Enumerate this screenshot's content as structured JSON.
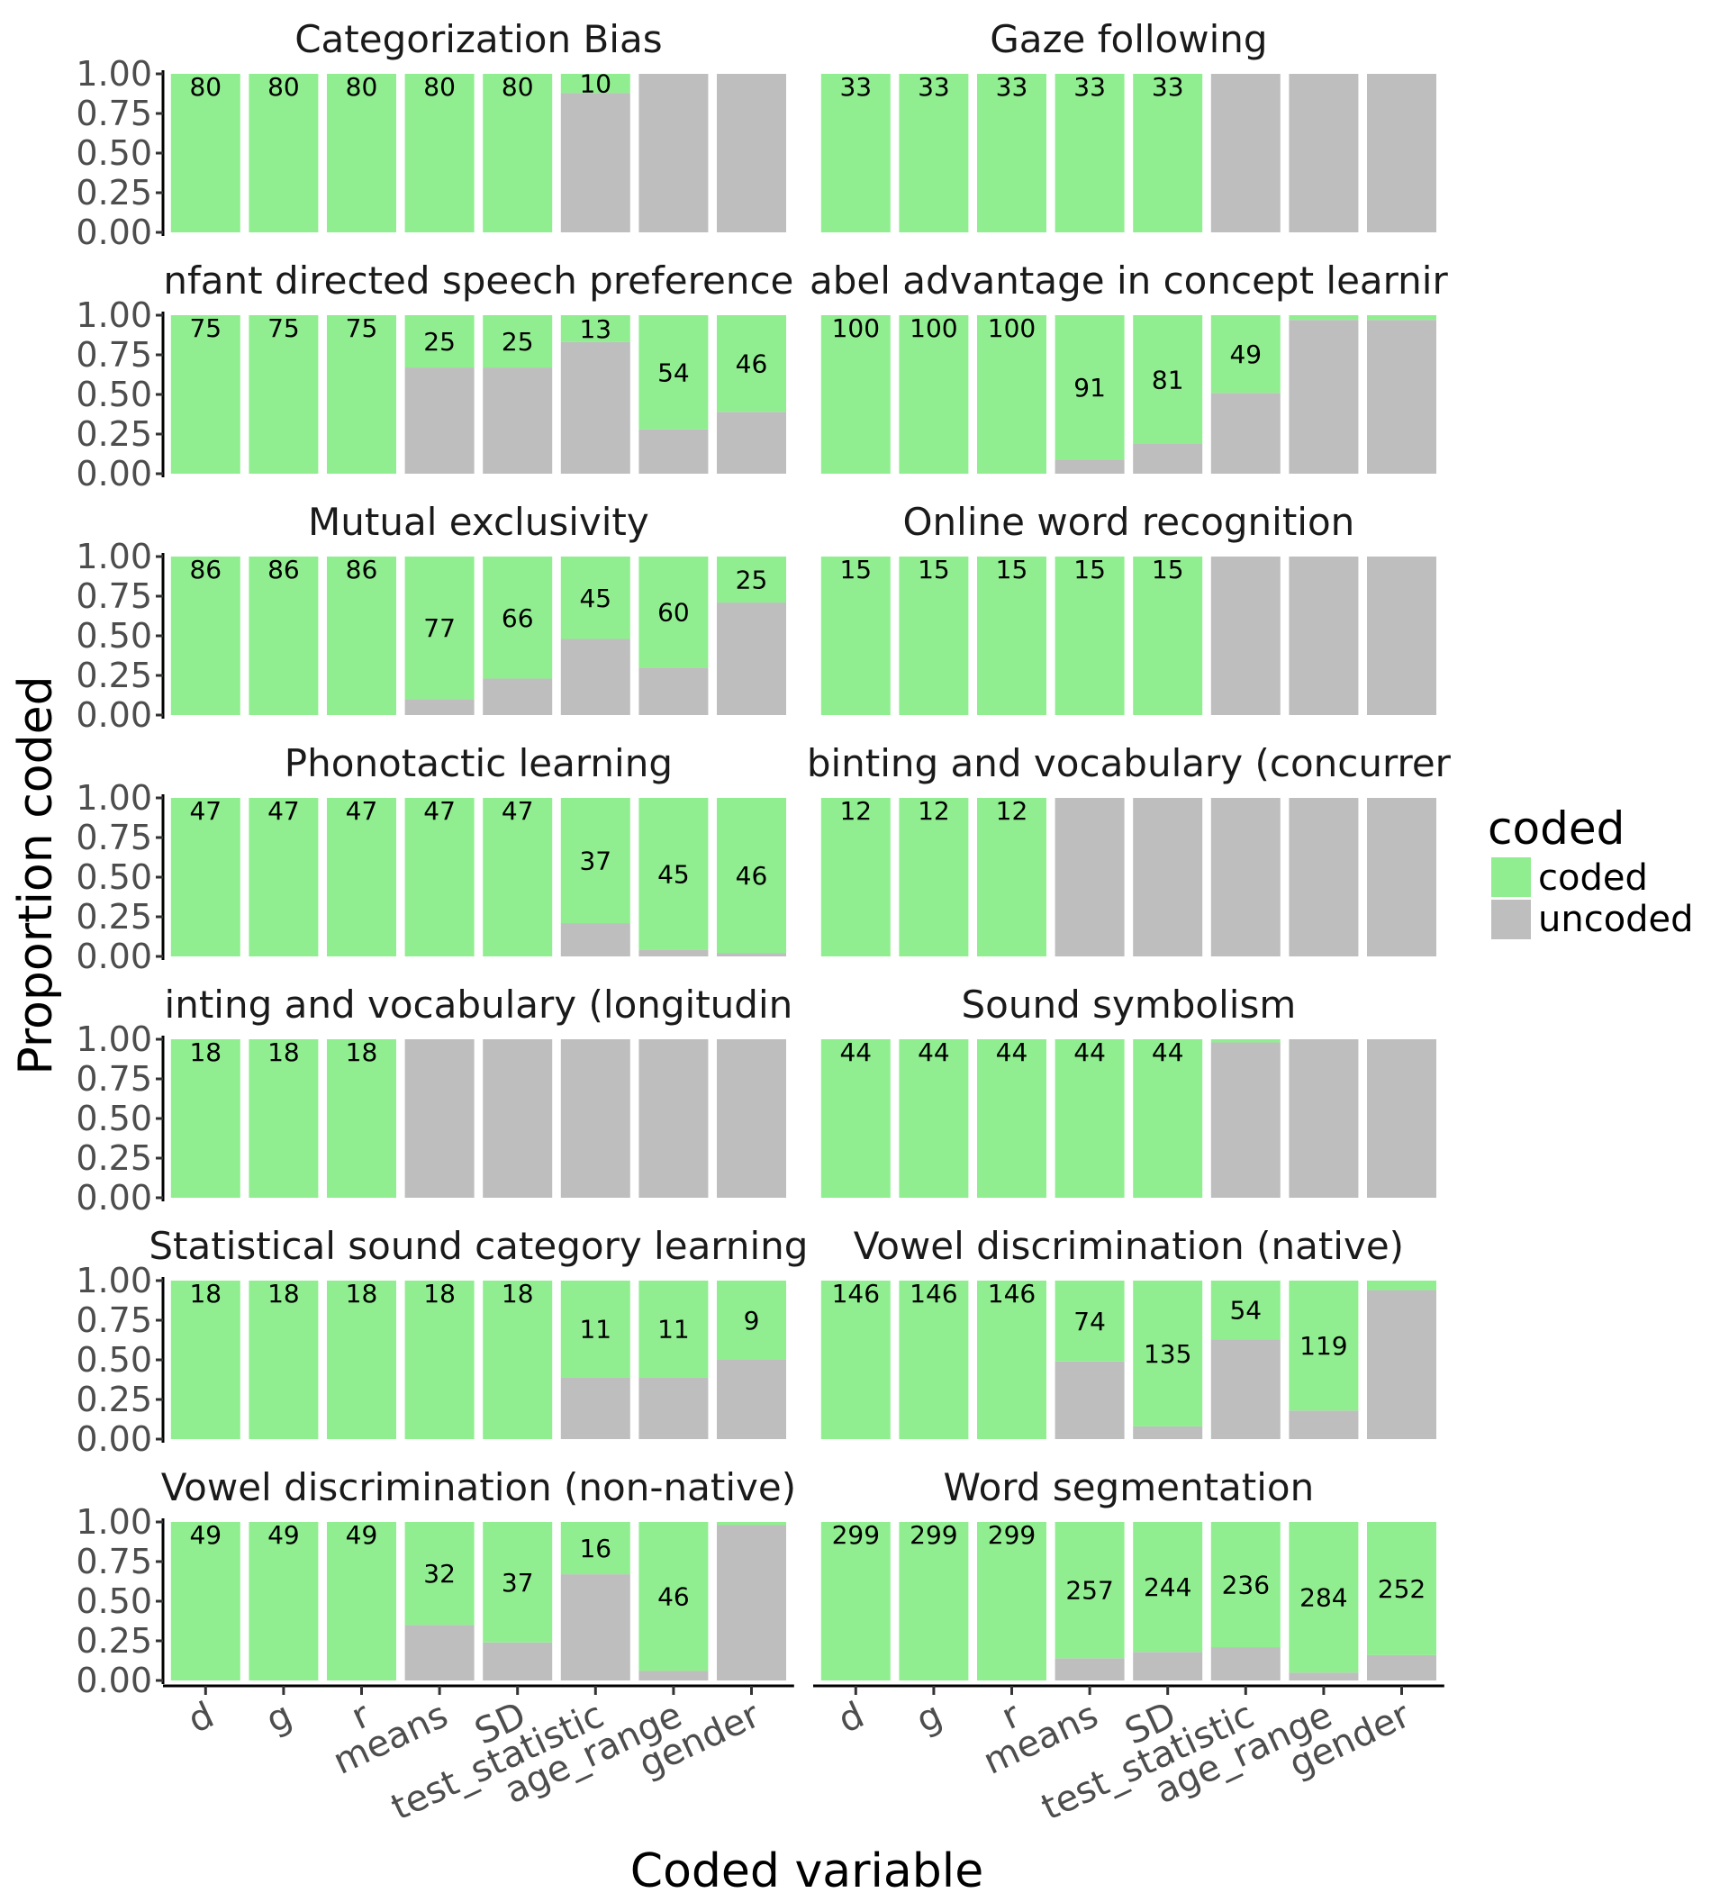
{
  "chart_data": {
    "type": "bar",
    "stacked": true,
    "facet_layout": {
      "ncol": 2,
      "nrow": 7
    },
    "xlabel": "Coded variable",
    "ylabel": "Proportion coded",
    "ylim": [
      0,
      1
    ],
    "yticks": [
      "0.00",
      "0.25",
      "0.50",
      "0.75",
      "1.00"
    ],
    "categories": [
      "d",
      "g",
      "r",
      "means",
      "SD",
      "test_statistic",
      "age_range",
      "gender"
    ],
    "legend": {
      "title": "coded",
      "position": "right",
      "items": [
        {
          "label": "coded",
          "color": "#90ee90"
        },
        {
          "label": "uncoded",
          "color": "#bebebe"
        }
      ]
    },
    "grid": false,
    "facets": [
      {
        "title": "Categorization Bias",
        "coded": [
          1,
          1,
          1,
          1,
          1,
          0.12,
          0,
          0
        ],
        "labels": [
          "80",
          "80",
          "80",
          "80",
          "80",
          "10",
          "",
          ""
        ]
      },
      {
        "title": "Gaze following",
        "coded": [
          1,
          1,
          1,
          1,
          1,
          0,
          0,
          0
        ],
        "labels": [
          "33",
          "33",
          "33",
          "33",
          "33",
          "",
          "",
          ""
        ]
      },
      {
        "title": "nfant directed speech preference",
        "coded": [
          1,
          1,
          1,
          0.33,
          0.33,
          0.17,
          0.72,
          0.61
        ],
        "labels": [
          "75",
          "75",
          "75",
          "25",
          "25",
          "13",
          "54",
          "46"
        ]
      },
      {
        "title": "abel advantage in concept learnir",
        "coded": [
          1,
          1,
          1,
          0.91,
          0.81,
          0.49,
          0.03,
          0.03
        ],
        "labels": [
          "100",
          "100",
          "100",
          "91",
          "81",
          "49",
          "",
          ""
        ]
      },
      {
        "title": "Mutual exclusivity",
        "coded": [
          1,
          1,
          1,
          0.9,
          0.77,
          0.52,
          0.7,
          0.29
        ],
        "labels": [
          "86",
          "86",
          "86",
          "77",
          "66",
          "45",
          "60",
          "25"
        ]
      },
      {
        "title": "Online word recognition",
        "coded": [
          1,
          1,
          1,
          1,
          1,
          0,
          0,
          0
        ],
        "labels": [
          "15",
          "15",
          "15",
          "15",
          "15",
          "",
          "",
          ""
        ]
      },
      {
        "title": "Phonotactic learning",
        "coded": [
          1,
          1,
          1,
          1,
          1,
          0.79,
          0.96,
          0.98
        ],
        "labels": [
          "47",
          "47",
          "47",
          "47",
          "47",
          "37",
          "45",
          "46"
        ]
      },
      {
        "title": "binting and vocabulary (concurrer",
        "coded": [
          1,
          1,
          1,
          0,
          0,
          0,
          0,
          0
        ],
        "labels": [
          "12",
          "12",
          "12",
          "",
          "",
          "",
          "",
          ""
        ]
      },
      {
        "title": "inting and vocabulary (longitudin",
        "coded": [
          1,
          1,
          1,
          0,
          0,
          0,
          0,
          0
        ],
        "labels": [
          "18",
          "18",
          "18",
          "",
          "",
          "",
          "",
          ""
        ]
      },
      {
        "title": "Sound symbolism",
        "coded": [
          1,
          1,
          1,
          1,
          1,
          0.02,
          0,
          0
        ],
        "labels": [
          "44",
          "44",
          "44",
          "44",
          "44",
          "",
          "",
          ""
        ]
      },
      {
        "title": "Statistical sound category learning",
        "coded": [
          1,
          1,
          1,
          1,
          1,
          0.61,
          0.61,
          0.5
        ],
        "labels": [
          "18",
          "18",
          "18",
          "18",
          "18",
          "11",
          "11",
          "9"
        ]
      },
      {
        "title": "Vowel discrimination (native)",
        "coded": [
          1,
          1,
          1,
          0.51,
          0.92,
          0.37,
          0.82,
          0.06
        ],
        "labels": [
          "146",
          "146",
          "146",
          "74",
          "135",
          "54",
          "119",
          ""
        ]
      },
      {
        "title": "Vowel discrimination (non-native)",
        "coded": [
          1,
          1,
          1,
          0.65,
          0.76,
          0.33,
          0.94,
          0.02
        ],
        "labels": [
          "49",
          "49",
          "49",
          "32",
          "37",
          "16",
          "46",
          ""
        ]
      },
      {
        "title": "Word segmentation",
        "coded": [
          1,
          1,
          1,
          0.86,
          0.82,
          0.79,
          0.95,
          0.84
        ],
        "labels": [
          "299",
          "299",
          "299",
          "257",
          "244",
          "236",
          "284",
          "252"
        ]
      }
    ]
  }
}
